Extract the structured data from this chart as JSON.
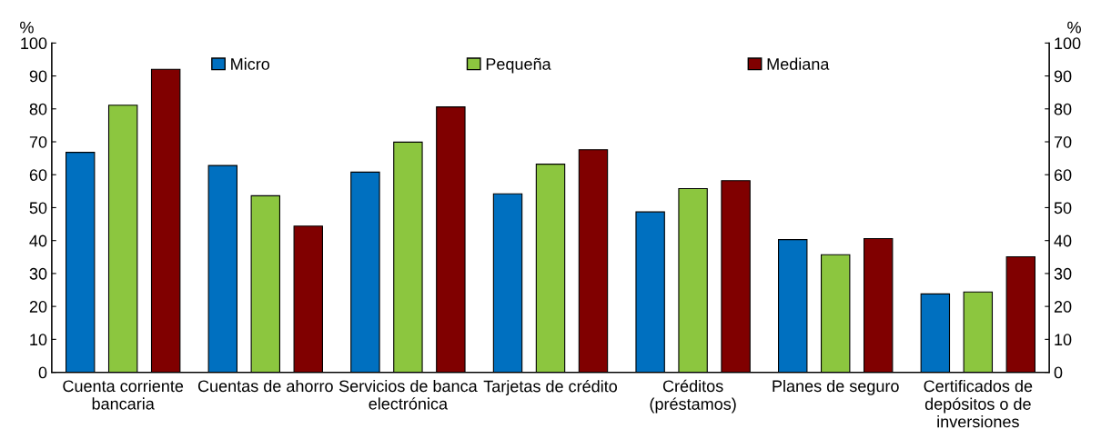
{
  "chart_data": {
    "type": "bar",
    "ylabel": "%",
    "y2label": "%",
    "categories": [
      "Cuenta corriente\nbancaria",
      "Cuentas de ahorro",
      "Servicios de banca\nelectrónica",
      "Tarjetas de crédito",
      "Créditos\n(préstamos)",
      "Planes de seguro",
      "Certificados de\ndepósitos o de\ninversiones"
    ],
    "series": [
      {
        "name": "Micro",
        "color": "#0070c0",
        "values": [
          66.8,
          62.8,
          60.8,
          54.2,
          48.7,
          40.3,
          23.8
        ]
      },
      {
        "name": "Pequeña",
        "color": "#8cc63f",
        "values": [
          81.1,
          53.6,
          69.9,
          63.2,
          55.8,
          35.7,
          24.4
        ]
      },
      {
        "name": "Mediana",
        "color": "#800000",
        "values": [
          92.0,
          44.4,
          80.6,
          67.6,
          58.2,
          40.6,
          35.1
        ]
      }
    ],
    "ylim": [
      0,
      100
    ],
    "yticks": [
      0,
      10,
      20,
      30,
      40,
      50,
      60,
      70,
      80,
      90,
      100
    ],
    "y2lim": [
      0,
      100
    ],
    "y2ticks": [
      0,
      10,
      20,
      30,
      40,
      50,
      60,
      70,
      80,
      90,
      100
    ],
    "grid": false,
    "legend": "top"
  }
}
